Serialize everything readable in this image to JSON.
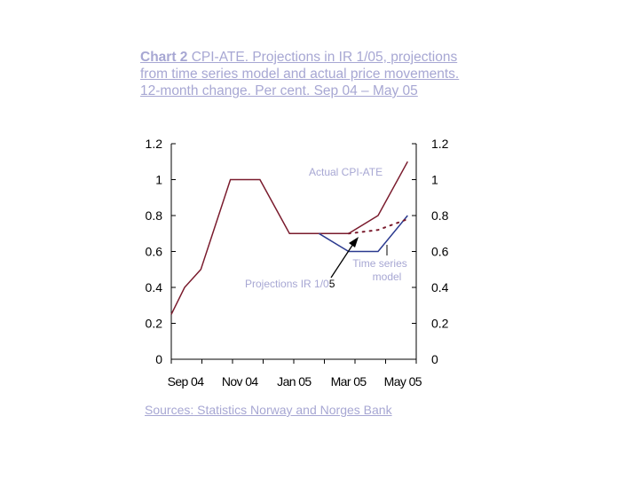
{
  "title_lead": "Chart 2",
  "title_rest": " CPI-ATE. Projections in IR 1/05, projections from time series model and actual price movements. 12-month change. Per cent. Sep 04 – May 05",
  "source_label": "Sources:",
  "source_rest": " Statistics Norway and Norges Bank",
  "colors": {
    "actual": "#7a1b2d",
    "time_series_model": "#2b3a8f",
    "projections_ir": "#7a1b2d",
    "axis": "#000000",
    "text_muted": "#a7a7d3"
  },
  "chart_data": {
    "type": "line",
    "title": "",
    "xlabel": "",
    "ylabel": "",
    "ylim": [
      0,
      1.2
    ],
    "y_ticks": [
      "0",
      "0.2",
      "0.4",
      "0.6",
      "0.8",
      "1",
      "1.2"
    ],
    "x": [
      "Sep 04",
      "Oct 04",
      "Nov 04",
      "Dec 04",
      "Jan 05",
      "Feb 05",
      "Mar 05",
      "Apr 05",
      "May 05"
    ],
    "x_tick_labels": [
      "Sep 04",
      "Nov 04",
      "Jan 05",
      "Mar 05",
      "May 05"
    ],
    "grid": false,
    "series": [
      {
        "name": "Actual CPI-ATE",
        "style": "solid",
        "color": "#7a1b2d",
        "points": [
          [
            "Sep 04",
            0.25
          ],
          [
            "Sep 04",
            0.4
          ],
          [
            "Oct 04",
            0.5
          ],
          [
            "Nov 04",
            1.0
          ],
          [
            "Dec 04",
            1.0
          ],
          [
            "Jan 05",
            0.7
          ],
          [
            "Feb 05",
            0.7
          ],
          [
            "Mar 05",
            0.7
          ],
          [
            "Apr 05",
            0.8
          ],
          [
            "May 05",
            1.1
          ]
        ]
      },
      {
        "name": "Time series model",
        "style": "solid",
        "color": "#2b3a8f",
        "points": [
          [
            "Feb 05",
            0.7
          ],
          [
            "Mar 05",
            0.6
          ],
          [
            "Apr 05",
            0.6
          ],
          [
            "May 05",
            0.8
          ]
        ]
      },
      {
        "name": "Projections IR 1/05",
        "style": "dotted",
        "color": "#7a1b2d",
        "points": [
          [
            "Mar 05",
            0.7
          ],
          [
            "Apr 05",
            0.72
          ],
          [
            "May 05",
            0.78
          ]
        ]
      }
    ],
    "annotations": [
      {
        "text_main": "Projections IR 1/0",
        "text_end": "5",
        "target": "Projections IR 1/05"
      },
      {
        "text": "Actual CPI-ATE",
        "target": "Actual CPI-ATE"
      },
      {
        "text_line1": "Time series",
        "text_line2": "model",
        "target": "Time series model"
      }
    ]
  }
}
